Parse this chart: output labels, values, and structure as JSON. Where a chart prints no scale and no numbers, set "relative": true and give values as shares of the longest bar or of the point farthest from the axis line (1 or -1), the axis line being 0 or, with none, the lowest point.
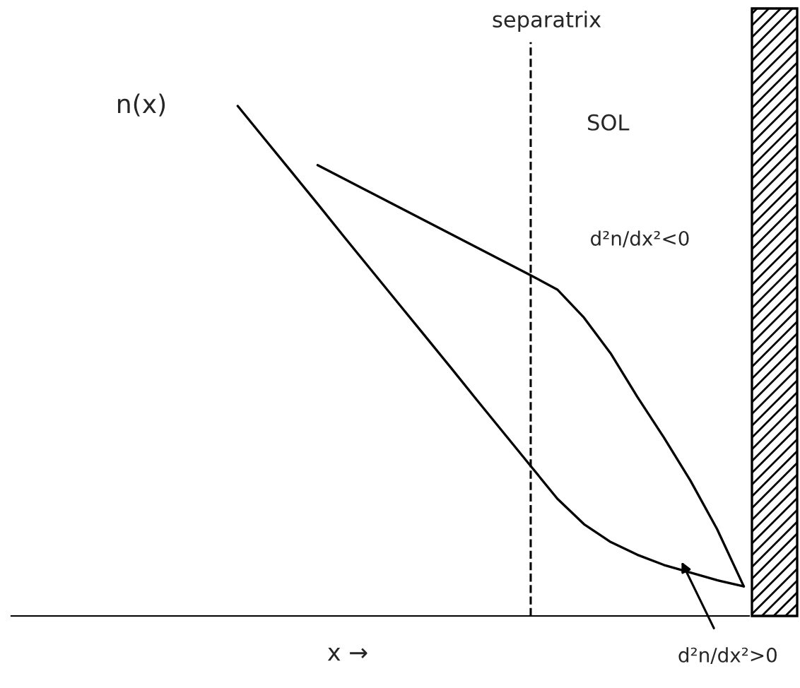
{
  "chart_data": {
    "type": "line",
    "relative": true,
    "xlabel": "x →",
    "ylabel": "n(x)",
    "categories": [
      null,
      null,
      null,
      null,
      null,
      null,
      null,
      null,
      null,
      null,
      null,
      null,
      null,
      null,
      null,
      null,
      null,
      null,
      null,
      null,
      null,
      null,
      null,
      null
    ],
    "series": [
      {
        "color": "#000000",
        "values": [
          null,
          null,
          null,
          null,
          1,
          0.936,
          0.872,
          0.808,
          0.743,
          0.679,
          0.615,
          0.551,
          0.487,
          0.422,
          0.358,
          0.294,
          0.23,
          0.18,
          0.145,
          0.12,
          0.1,
          0.085,
          0.07,
          0.058
        ]
      },
      {
        "color": "#000000",
        "values": [
          null,
          null,
          null,
          null,
          null,
          null,
          null,
          0.884,
          0.857,
          0.83,
          0.803,
          0.776,
          0.749,
          0.722,
          0.695,
          0.668,
          0.64,
          0.585,
          0.515,
          0.43,
          0.35,
          0.265,
          0.17,
          0.058
        ]
      }
    ],
    "annotations": [
      "separatrix",
      "SOL",
      "d²n/dx²<0",
      "d²n/dx²>0"
    ],
    "legend": false,
    "marker": "none",
    "line_style": "solid"
  }
}
